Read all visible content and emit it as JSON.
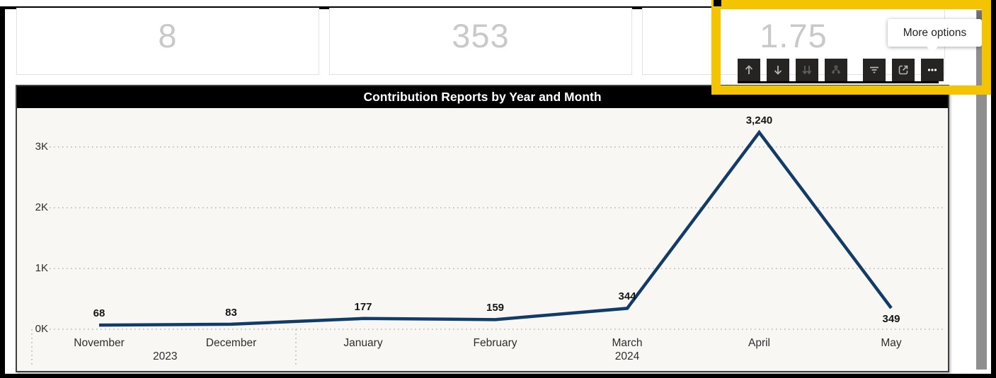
{
  "annotation": {
    "tooltip_text": "More options",
    "highlight_color": "#f5c400"
  },
  "kpi_cards": [
    {
      "value": "8"
    },
    {
      "value": "353"
    },
    {
      "value": "1.75"
    }
  ],
  "visual_toolbar": {
    "icons": [
      {
        "name": "drill-up-icon",
        "state": "enabled"
      },
      {
        "name": "drill-down-icon",
        "state": "enabled"
      },
      {
        "name": "go-to-next-level-icon",
        "state": "disabled"
      },
      {
        "name": "expand-all-icon",
        "state": "disabled"
      },
      {
        "name": "filters-icon",
        "state": "enabled"
      },
      {
        "name": "focus-mode-icon",
        "state": "enabled"
      },
      {
        "name": "more-options-icon",
        "state": "active"
      }
    ]
  },
  "chart_data": {
    "type": "line",
    "title": "Contribution Reports by Year and Month",
    "categories": [
      "November",
      "December",
      "January",
      "February",
      "March",
      "April",
      "May"
    ],
    "values": [
      68,
      83,
      177,
      159,
      344,
      3240,
      349
    ],
    "data_labels": [
      "68",
      "83",
      "177",
      "159",
      "344",
      "3,240",
      "349"
    ],
    "year_groups": [
      {
        "label": "2023",
        "months": [
          "November",
          "December"
        ]
      },
      {
        "label": "2024",
        "months": [
          "January",
          "February",
          "March",
          "April",
          "May"
        ]
      }
    ],
    "yticks": [
      {
        "label": "0K",
        "value": 0
      },
      {
        "label": "1K",
        "value": 1000
      },
      {
        "label": "2K",
        "value": 2000
      },
      {
        "label": "3K",
        "value": 3000
      }
    ],
    "ylim": [
      0,
      3650
    ],
    "grid": "dotted",
    "legend": "none",
    "line_color": "#123c67",
    "label_below": [
      false,
      false,
      false,
      false,
      false,
      false,
      true
    ]
  }
}
